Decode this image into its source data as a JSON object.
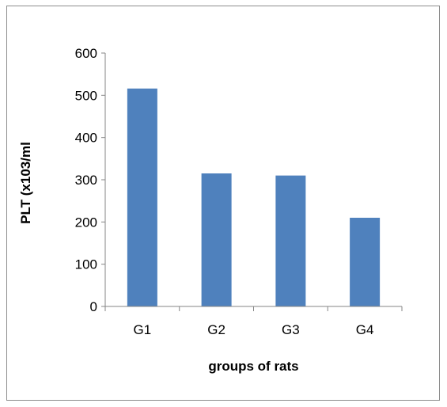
{
  "chart_data": {
    "type": "bar",
    "categories": [
      "G1",
      "G2",
      "G3",
      "G4"
    ],
    "values": [
      516,
      315,
      310,
      210
    ],
    "title": "",
    "xlabel": "groups of rats",
    "ylabel": "PLT (x103/ml",
    "ylim": [
      0,
      600
    ],
    "yticks": [
      "0",
      "100",
      "200",
      "300",
      "400",
      "500",
      "600"
    ],
    "grid": false,
    "legend": "none",
    "bar_color": "#4f81bd",
    "axis_color": "#868686"
  }
}
